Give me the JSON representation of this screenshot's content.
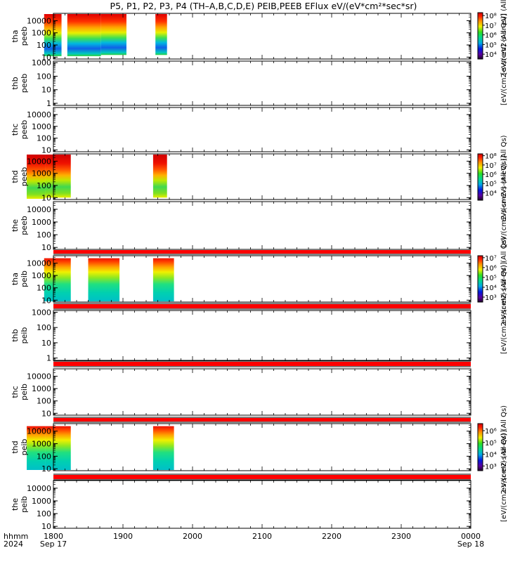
{
  "title": "P5, P1, P2, P3, P4 (TH–A,B,C,D,E) PEIB,PEEB EFlux eV/(eV*cm²*sec*sr)",
  "x_axis": {
    "row_label_1": "hhmm",
    "row_label_2": "2024",
    "ticks": [
      "1800",
      "1900",
      "2000",
      "2100",
      "2200",
      "2300",
      "0000"
    ],
    "tick_values": [
      1080,
      1140,
      1200,
      1260,
      1320,
      1380,
      1440
    ],
    "date_start": "Sep 17",
    "date_end": "Sep 18"
  },
  "colorbars": [
    {
      "panel": 0,
      "label": "[eV/(cm2-s-sr-eV) (All",
      "ticks": [
        "10⁸",
        "10⁷",
        "10⁶",
        "10⁵",
        "10⁴"
      ],
      "tick_exps": [
        8,
        7,
        6,
        5,
        4
      ],
      "exp_range": [
        3.5,
        8.3
      ]
    },
    {
      "panel": 3,
      "label": "eV/(cm2-s-sr-eV) (All Qs)",
      "ticks": [
        "10⁸",
        "10⁷",
        "10⁶",
        "10⁵",
        "10⁴"
      ],
      "tick_exps": [
        8,
        7,
        6,
        5,
        4
      ],
      "exp_range": [
        3.2,
        8.2
      ]
    },
    {
      "panel": 5,
      "label": "eV/(cm2-s-sr-eV) (All Qs)",
      "ticks": [
        "10⁷",
        "10⁶",
        "10⁵",
        "10⁴",
        "10³"
      ],
      "tick_exps": [
        7,
        6,
        5,
        4,
        3
      ],
      "exp_range": [
        2.5,
        7.2
      ]
    },
    {
      "panel": 8,
      "label": "eV/(cm2-s-sr-eV) (All Qs)",
      "ticks": [
        "10⁶",
        "10⁵",
        "10⁴",
        "10³"
      ],
      "tick_exps": [
        6,
        5,
        4,
        3
      ],
      "exp_range": [
        2.6,
        6.6
      ]
    }
  ],
  "colorbar_side_labels": [
    {
      "text": "[eV/(cm2-s-sr-eV) (All Qs)]",
      "between_panels": [
        3,
        4
      ]
    },
    {
      "text": "[eV/(cm2-s-sr-eV) (All Qs)]",
      "between_panels": [
        5,
        6
      ]
    },
    {
      "text": "[eV/(cm2-s-sr-eV) (All Qs)]",
      "between_panels": [
        8,
        9
      ]
    },
    {
      "text": "[eV/(cm2-s-sr-eV) (All Qs)]",
      "between_panels": [
        0,
        1
      ]
    }
  ],
  "chart_data": [
    {
      "type": "heatmap",
      "probe": "tha",
      "species": "peeb",
      "ytick_labels": [
        "10000",
        "1000",
        "100",
        "10"
      ],
      "ytick_values": [
        10000,
        1000,
        100,
        10
      ],
      "ylim": [
        7,
        40000
      ],
      "yscale": "log",
      "xlim": [
        1080,
        1440
      ],
      "blocks": [
        {
          "x": [
            1072,
            1087
          ],
          "low": 12,
          "high": 40000
        },
        {
          "x": [
            1092,
            1121
          ],
          "low": 12,
          "high": 40000
        },
        {
          "x": [
            1121,
            1143
          ],
          "low": 15,
          "high": 40000
        },
        {
          "x": [
            1168,
            1178
          ],
          "low": 15,
          "high": 40000
        }
      ],
      "style": "peeb_a"
    },
    {
      "type": "heatmap",
      "probe": "thb",
      "species": "peeb",
      "ytick_labels": [
        "1000",
        "100",
        "10",
        "1"
      ],
      "ytick_values": [
        1000,
        100,
        10,
        1
      ],
      "ylim": [
        0.7,
        1300
      ],
      "yscale": "log",
      "xlim": [
        1080,
        1440
      ],
      "blocks": []
    },
    {
      "type": "heatmap",
      "probe": "thc",
      "species": "peeb",
      "ytick_labels": [
        "10000",
        "1000",
        "100",
        "10"
      ],
      "ytick_values": [
        10000,
        1000,
        100,
        10
      ],
      "ylim": [
        7,
        40000
      ],
      "yscale": "log",
      "xlim": [
        1080,
        1440
      ],
      "blocks": []
    },
    {
      "type": "heatmap",
      "probe": "thd",
      "species": "peeb",
      "ytick_labels": [
        "10000",
        "1000",
        "100",
        "10"
      ],
      "ytick_values": [
        10000,
        1000,
        100,
        10
      ],
      "ylim": [
        7,
        40000
      ],
      "yscale": "log",
      "xlim": [
        1080,
        1440
      ],
      "blocks": [
        {
          "x": [
            1057,
            1073
          ],
          "low": 8,
          "high": 40000
        },
        {
          "x": [
            1073,
            1095
          ],
          "low": 10,
          "high": 40000
        },
        {
          "x": [
            1166,
            1178
          ],
          "low": 10,
          "high": 40000
        }
      ],
      "style": "peeb_d"
    },
    {
      "type": "heatmap",
      "probe": "the",
      "species": "peeb",
      "ytick_labels": [
        "10000",
        "1000",
        "100",
        "10"
      ],
      "ytick_values": [
        10000,
        1000,
        100,
        10
      ],
      "ylim": [
        7,
        40000
      ],
      "yscale": "log",
      "xlim": [
        1080,
        1440
      ],
      "blocks": []
    },
    {
      "type": "heatmap",
      "probe": "tha",
      "species": "peib",
      "ytick_labels": [
        "10000",
        "1000",
        "100",
        "10"
      ],
      "ytick_values": [
        10000,
        1000,
        100,
        10
      ],
      "ylim": [
        7,
        40000
      ],
      "yscale": "log",
      "xlim": [
        1080,
        1440
      ],
      "blocks": [
        {
          "x": [
            1072,
            1095
          ],
          "low": 7,
          "high": 25000
        },
        {
          "x": [
            1110,
            1137
          ],
          "low": 7,
          "high": 25000
        },
        {
          "x": [
            1166,
            1184
          ],
          "low": 7,
          "high": 25000
        }
      ],
      "style": "peib"
    },
    {
      "type": "heatmap",
      "probe": "thb",
      "species": "peib",
      "ytick_labels": [
        "1000",
        "100",
        "10",
        "1"
      ],
      "ytick_values": [
        1000,
        100,
        10,
        1
      ],
      "ylim": [
        0.7,
        1300
      ],
      "yscale": "log",
      "xlim": [
        1080,
        1440
      ],
      "blocks": []
    },
    {
      "type": "heatmap",
      "probe": "thc",
      "species": "peib",
      "ytick_labels": [
        "10000",
        "1000",
        "100",
        "10"
      ],
      "ytick_values": [
        10000,
        1000,
        100,
        10
      ],
      "ylim": [
        7,
        40000
      ],
      "yscale": "log",
      "xlim": [
        1080,
        1440
      ],
      "blocks": []
    },
    {
      "type": "heatmap",
      "probe": "thd",
      "species": "peib",
      "ytick_labels": [
        "10000",
        "1000",
        "100",
        "10"
      ],
      "ytick_values": [
        10000,
        1000,
        100,
        10
      ],
      "ylim": [
        7,
        40000
      ],
      "yscale": "log",
      "xlim": [
        1080,
        1440
      ],
      "blocks": [
        {
          "x": [
            1057,
            1073
          ],
          "low": 7,
          "high": 25000
        },
        {
          "x": [
            1073,
            1095
          ],
          "low": 7,
          "high": 25000
        },
        {
          "x": [
            1166,
            1184
          ],
          "low": 7,
          "high": 25000
        }
      ],
      "style": "peib"
    },
    {
      "type": "heatmap",
      "probe": "the",
      "species": "peib",
      "ytick_labels": [
        "10000",
        "1000",
        "100",
        "10"
      ],
      "ytick_values": [
        10000,
        1000,
        100,
        10
      ],
      "ylim": [
        7,
        40000
      ],
      "yscale": "log",
      "xlim": [
        1080,
        1440
      ],
      "blocks": []
    }
  ]
}
